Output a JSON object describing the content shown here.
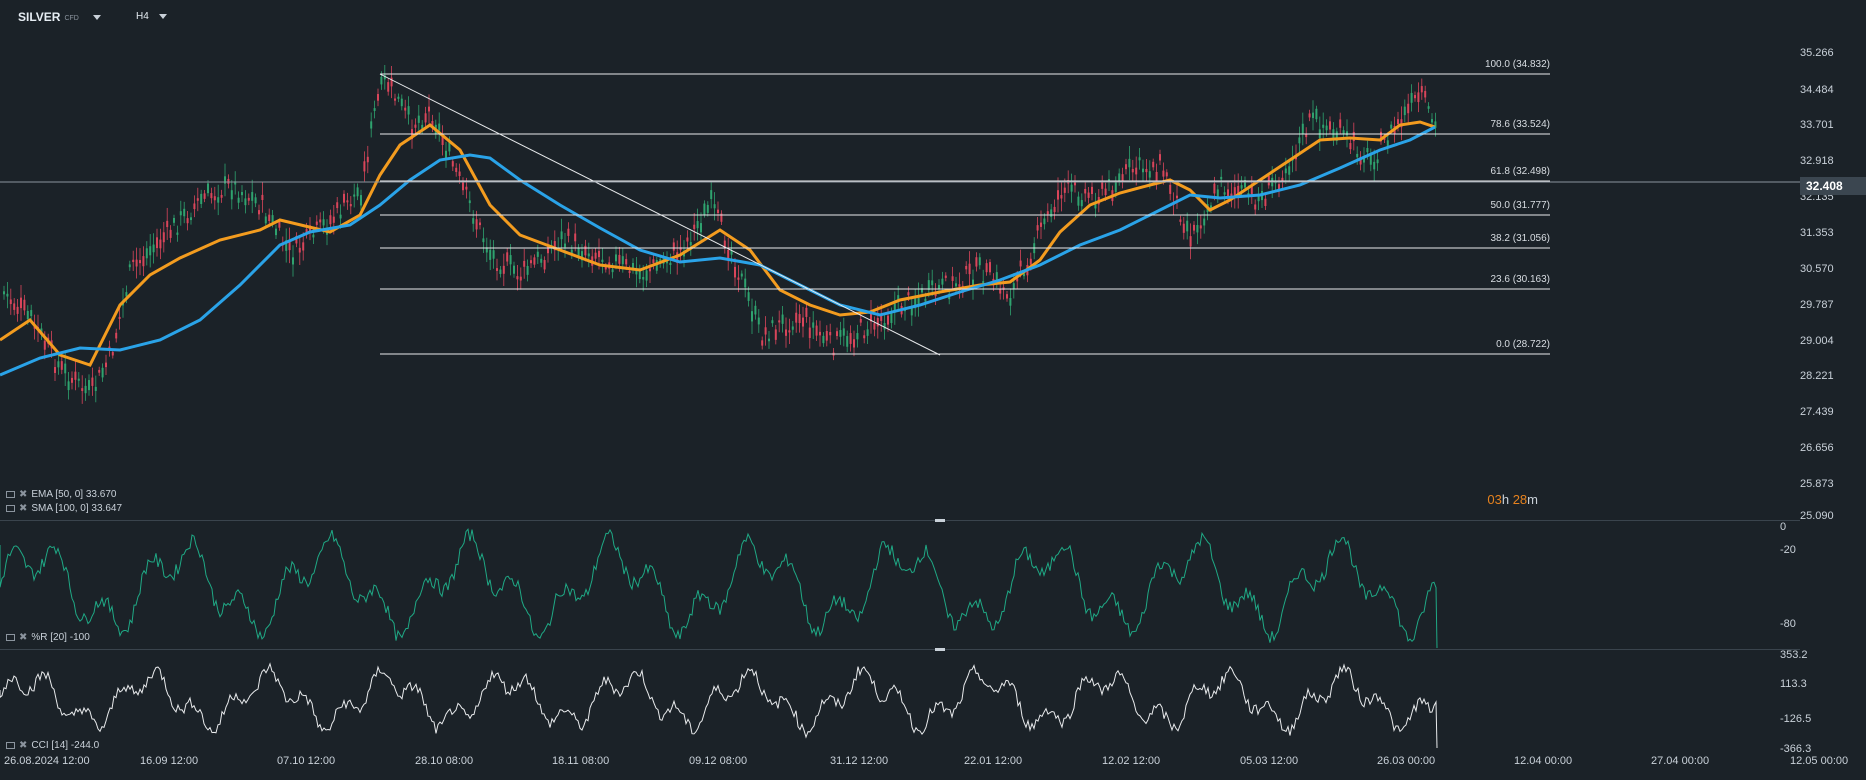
{
  "symbol": {
    "name": "SILVER",
    "type": "CFD"
  },
  "timeframe": "H4",
  "colors": {
    "bg": "#1b2228",
    "ema": "#f39c1f",
    "sma": "#2aa3e8",
    "wr": "#1fa985",
    "cci": "#e8eaec",
    "up": "#2fa36f",
    "down": "#d9455a"
  },
  "price_axis": [
    "35.266",
    "34.484",
    "33.701",
    "32.918",
    "32.135",
    "31.353",
    "30.570",
    "29.787",
    "29.004",
    "28.221",
    "27.439",
    "26.656",
    "25.873",
    "25.090"
  ],
  "current_price": "32.408",
  "fib_levels": [
    {
      "label": "100.0 (34.832)"
    },
    {
      "label": "78.6 (33.524)"
    },
    {
      "label": "61.8 (32.498)"
    },
    {
      "label": "50.0 (31.777)"
    },
    {
      "label": "38.2 (31.056)"
    },
    {
      "label": "23.6 (30.163)"
    },
    {
      "label": "0.0 (28.722)"
    }
  ],
  "legend": {
    "ema": "EMA [50, 0] 33.670",
    "sma": "SMA [100, 0] 33.647",
    "wr": "%R [20] -100",
    "cci": "CCI [14] -244.0"
  },
  "timer": {
    "h": "03",
    "h_unit": "h",
    "m": "28",
    "m_unit": "m"
  },
  "wr_axis": [
    "0",
    "-20",
    "-80"
  ],
  "cci_axis": [
    "353.2",
    "113.3",
    "-126.5",
    "-366.3"
  ],
  "time_axis": [
    "26.08.2024  12:00",
    "16.09  12:00",
    "07.10  12:00",
    "28.10  08:00",
    "18.11  08:00",
    "09.12  08:00",
    "31.12  12:00",
    "22.01  12:00",
    "12.02  12:00",
    "05.03  12:00",
    "26.03  00:00",
    "12.04  00:00",
    "27.04  00:00",
    "12.05  00:00"
  ]
}
